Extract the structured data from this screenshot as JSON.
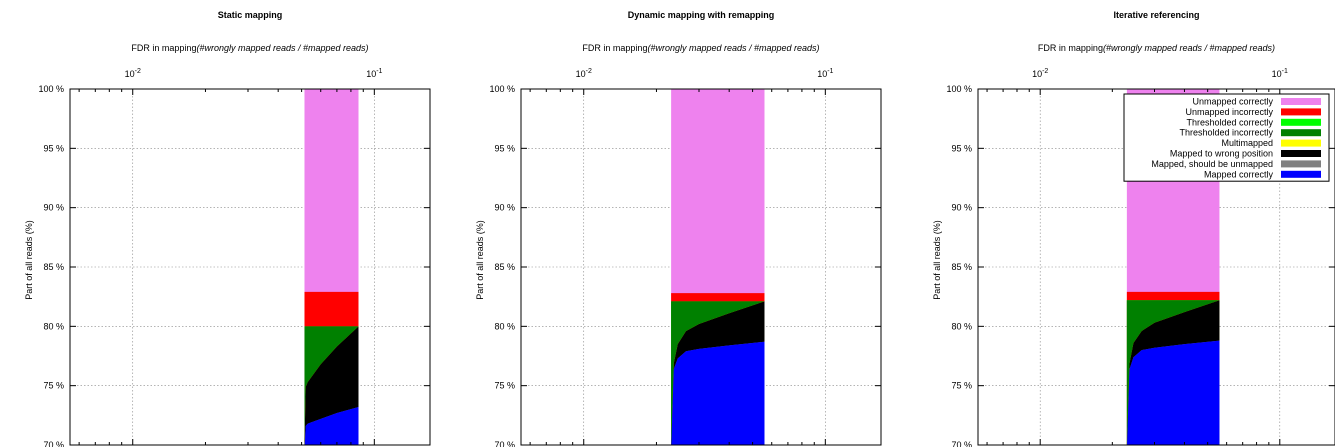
{
  "chart_data": [
    {
      "type": "area",
      "title": "Static mapping",
      "xlabel_prefix": "FDR in mapping",
      "xlabel_italic": "(#wrongly mapped reads / #mapped reads)",
      "ylabel": "Part of all reads (%)",
      "x_scale": "log",
      "x_axis_position": "top",
      "xlim": [
        0.0055,
        0.17
      ],
      "ylim": [
        70,
        100
      ],
      "xticks": [
        {
          "value": 0.01,
          "base": "10",
          "exp": "-2"
        },
        {
          "value": 0.1,
          "base": "10",
          "exp": "-1"
        }
      ],
      "yticks": [
        {
          "value": 70,
          "label": "70 %"
        },
        {
          "value": 75,
          "label": "75 %"
        },
        {
          "value": 80,
          "label": "80 %"
        },
        {
          "value": 85,
          "label": "85 %"
        },
        {
          "value": 90,
          "label": "90 %"
        },
        {
          "value": 95,
          "label": "95 %"
        },
        {
          "value": 100,
          "label": "100 %"
        }
      ],
      "grid": true,
      "legend": null,
      "x": [
        0.0514,
        0.052,
        0.053,
        0.06,
        0.07,
        0.086
      ],
      "series": [
        {
          "name": "Mapped correctly",
          "color": "#0000ff",
          "values": [
            69.5,
            71.6,
            71.8,
            72.2,
            72.7,
            73.2
          ]
        },
        {
          "name": "Mapped, should be unmapped",
          "color": "#808080",
          "values": [
            69.5,
            71.6,
            71.8,
            72.2,
            72.7,
            73.2
          ]
        },
        {
          "name": "Mapped to wrong position",
          "color": "#000000",
          "values": [
            70.2,
            74.9,
            75.3,
            76.8,
            78.3,
            80.0
          ]
        },
        {
          "name": "Multimapped",
          "color": "#ffff00",
          "values": [
            70.2,
            74.9,
            75.3,
            76.8,
            78.3,
            80.0
          ]
        },
        {
          "name": "Thresholded incorrectly",
          "color": "#008000",
          "values": [
            80.0,
            80.0,
            80.0,
            80.0,
            80.0,
            80.0
          ]
        },
        {
          "name": "Thresholded correctly",
          "color": "#00ff00",
          "values": [
            80.0,
            80.0,
            80.0,
            80.0,
            80.0,
            80.0
          ]
        },
        {
          "name": "Unmapped incorrectly",
          "color": "#ff0000",
          "values": [
            82.9,
            82.9,
            82.9,
            82.9,
            82.9,
            82.9
          ]
        },
        {
          "name": "Unmapped correctly",
          "color": "#ee82ee",
          "values": [
            100,
            100,
            100,
            100,
            100,
            100
          ]
        }
      ]
    },
    {
      "type": "area",
      "title": "Dynamic mapping with remapping",
      "xlabel_prefix": "FDR in mapping",
      "xlabel_italic": "(#wrongly mapped reads / #mapped reads)",
      "ylabel": "Part of all reads (%)",
      "x_scale": "log",
      "x_axis_position": "top",
      "xlim": [
        0.0055,
        0.17
      ],
      "ylim": [
        70,
        100
      ],
      "xticks": [
        {
          "value": 0.01,
          "base": "10",
          "exp": "-2"
        },
        {
          "value": 0.1,
          "base": "10",
          "exp": "-1"
        }
      ],
      "yticks": [
        {
          "value": 70,
          "label": "70 %"
        },
        {
          "value": 75,
          "label": "75 %"
        },
        {
          "value": 80,
          "label": "80 %"
        },
        {
          "value": 85,
          "label": "85 %"
        },
        {
          "value": 90,
          "label": "90 %"
        },
        {
          "value": 95,
          "label": "95 %"
        },
        {
          "value": 100,
          "label": "100 %"
        }
      ],
      "grid": true,
      "legend": null,
      "x": [
        0.023,
        0.0236,
        0.0245,
        0.0265,
        0.03,
        0.04,
        0.056
      ],
      "series": [
        {
          "name": "Mapped correctly",
          "color": "#0000ff",
          "values": [
            69.5,
            76.4,
            77.3,
            77.9,
            78.1,
            78.4,
            78.7
          ]
        },
        {
          "name": "Mapped, should be unmapped",
          "color": "#808080",
          "values": [
            69.5,
            76.4,
            77.3,
            77.9,
            78.1,
            78.4,
            78.7
          ]
        },
        {
          "name": "Mapped to wrong position",
          "color": "#000000",
          "values": [
            70.0,
            76.9,
            78.5,
            79.6,
            80.2,
            81.1,
            82.1
          ]
        },
        {
          "name": "Multimapped",
          "color": "#ffff00",
          "values": [
            70.0,
            76.9,
            78.5,
            79.6,
            80.2,
            81.1,
            82.1
          ]
        },
        {
          "name": "Thresholded incorrectly",
          "color": "#008000",
          "values": [
            82.1,
            82.1,
            82.1,
            82.1,
            82.1,
            82.1,
            82.1
          ]
        },
        {
          "name": "Thresholded correctly",
          "color": "#00ff00",
          "values": [
            82.1,
            82.1,
            82.1,
            82.1,
            82.1,
            82.1,
            82.1
          ]
        },
        {
          "name": "Unmapped incorrectly",
          "color": "#ff0000",
          "values": [
            82.8,
            82.8,
            82.8,
            82.8,
            82.8,
            82.8,
            82.8
          ]
        },
        {
          "name": "Unmapped correctly",
          "color": "#ee82ee",
          "values": [
            100,
            100,
            100,
            100,
            100,
            100,
            100
          ]
        }
      ]
    },
    {
      "type": "area",
      "title": "Iterative referencing",
      "xlabel_prefix": "FDR in mapping",
      "xlabel_italic": "(#wrongly mapped reads / #mapped reads)",
      "ylabel": "Part of all reads (%)",
      "x_scale": "log",
      "x_axis_position": "top",
      "xlim": [
        0.0055,
        0.17
      ],
      "ylim": [
        70,
        100
      ],
      "xticks": [
        {
          "value": 0.01,
          "base": "10",
          "exp": "-2"
        },
        {
          "value": 0.1,
          "base": "10",
          "exp": "-1"
        }
      ],
      "yticks": [
        {
          "value": 70,
          "label": "70 %"
        },
        {
          "value": 75,
          "label": "75 %"
        },
        {
          "value": 80,
          "label": "80 %"
        },
        {
          "value": 85,
          "label": "85 %"
        },
        {
          "value": 90,
          "label": "90 %"
        },
        {
          "value": 95,
          "label": "95 %"
        },
        {
          "value": 100,
          "label": "100 %"
        }
      ],
      "grid": true,
      "legend": "top-right",
      "x": [
        0.023,
        0.0236,
        0.0245,
        0.0265,
        0.03,
        0.04,
        0.056
      ],
      "series": [
        {
          "name": "Mapped correctly",
          "color": "#0000ff",
          "values": [
            69.5,
            76.4,
            77.4,
            78.0,
            78.2,
            78.5,
            78.8
          ]
        },
        {
          "name": "Mapped, should be unmapped",
          "color": "#808080",
          "values": [
            69.5,
            76.4,
            77.4,
            78.0,
            78.2,
            78.5,
            78.8
          ]
        },
        {
          "name": "Mapped to wrong position",
          "color": "#000000",
          "values": [
            70.0,
            76.9,
            78.6,
            79.6,
            80.3,
            81.2,
            82.2
          ]
        },
        {
          "name": "Multimapped",
          "color": "#ffff00",
          "values": [
            70.0,
            76.9,
            78.6,
            79.6,
            80.3,
            81.2,
            82.2
          ]
        },
        {
          "name": "Thresholded incorrectly",
          "color": "#008000",
          "values": [
            82.2,
            82.2,
            82.2,
            82.2,
            82.2,
            82.2,
            82.2
          ]
        },
        {
          "name": "Thresholded correctly",
          "color": "#00ff00",
          "values": [
            82.2,
            82.2,
            82.2,
            82.2,
            82.2,
            82.2,
            82.2
          ]
        },
        {
          "name": "Unmapped incorrectly",
          "color": "#ff0000",
          "values": [
            82.9,
            82.9,
            82.9,
            82.9,
            82.9,
            82.9,
            82.9
          ]
        },
        {
          "name": "Unmapped correctly",
          "color": "#ee82ee",
          "values": [
            100,
            100,
            100,
            100,
            100,
            100,
            100
          ]
        }
      ]
    }
  ]
}
